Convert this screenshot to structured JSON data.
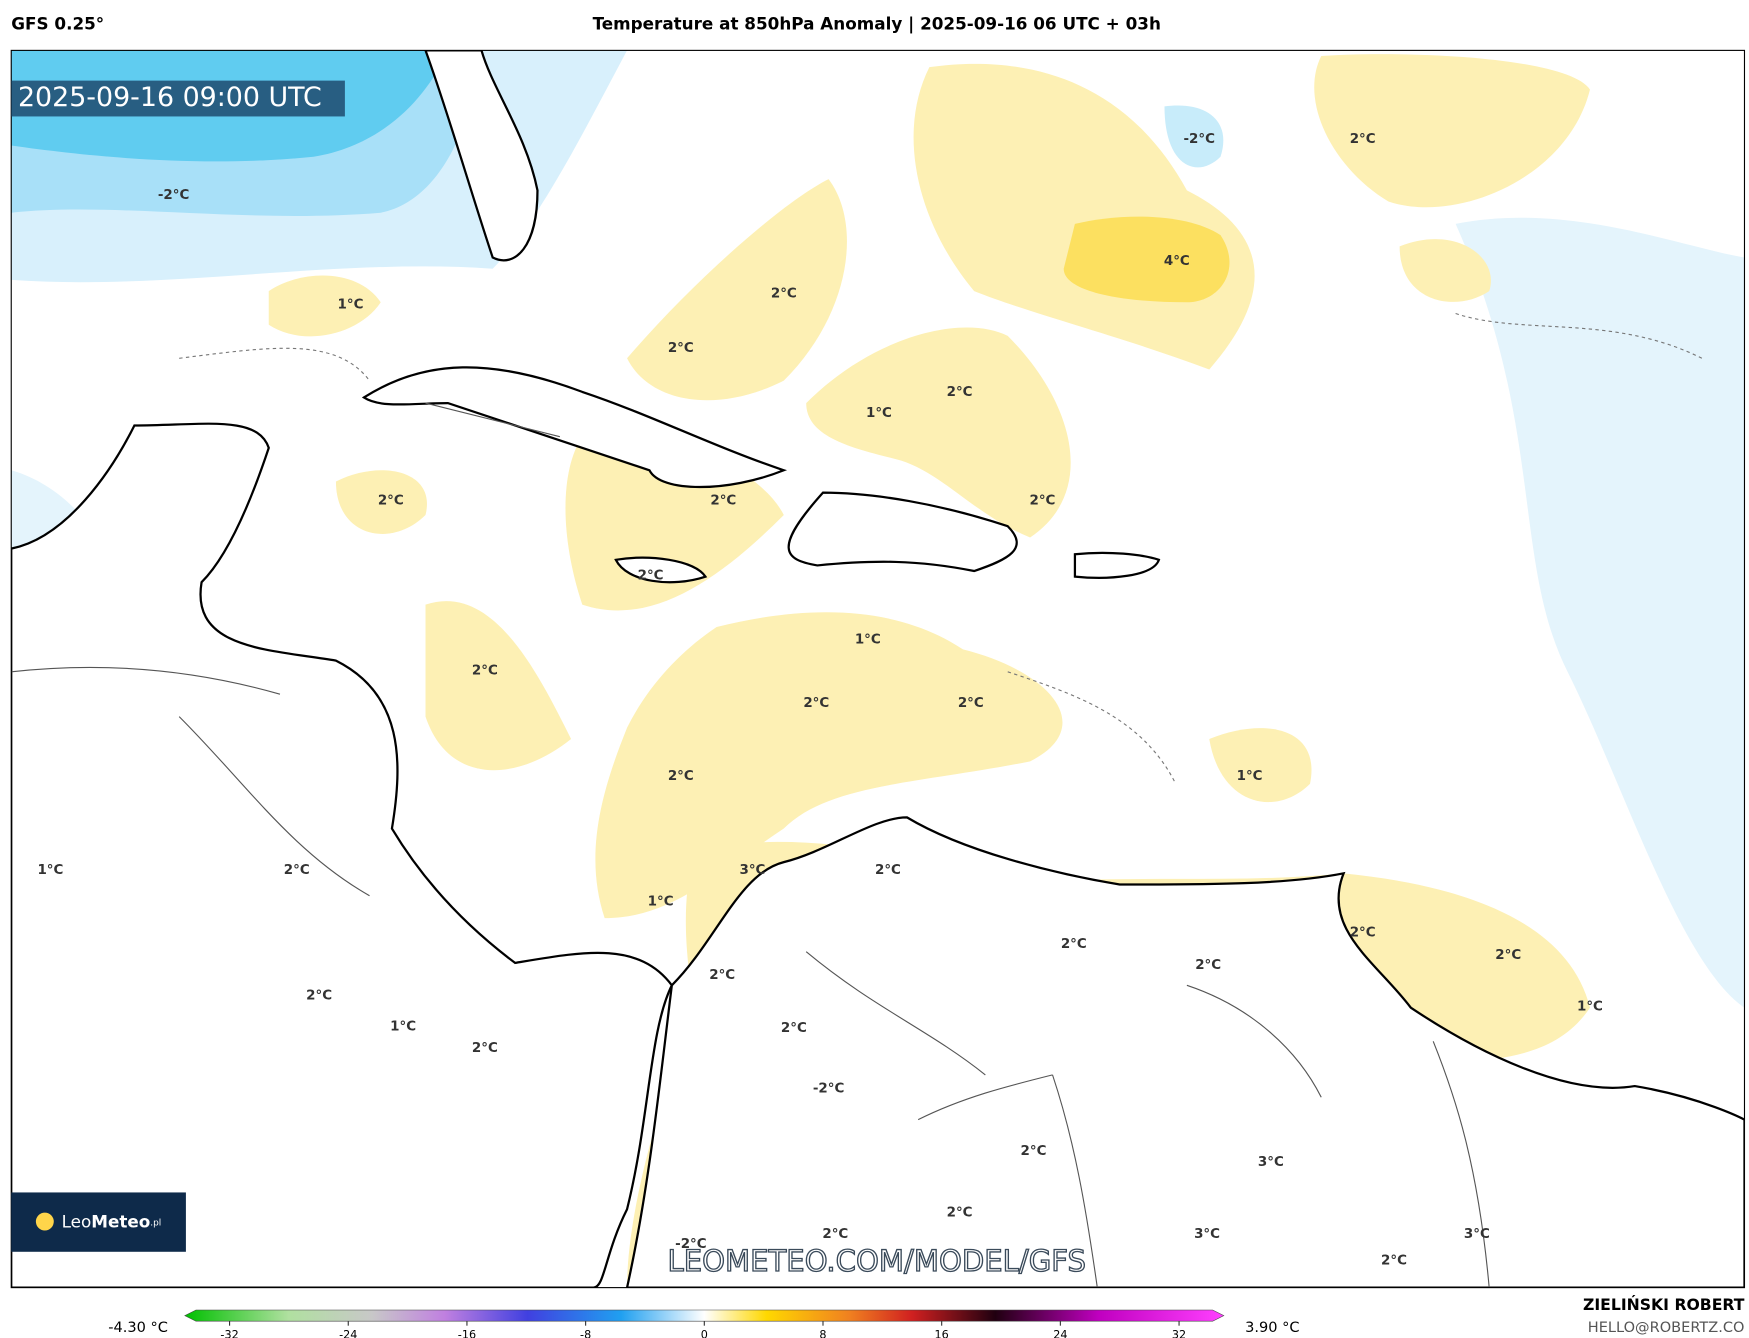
{
  "header": {
    "model": "GFS 0.25°",
    "title": "Temperature at 850hPa Anomaly | 2025-09-16 06 UTC + 03h"
  },
  "map": {
    "timestamp": "2025-09-16 09:00 UTC",
    "contour_labels": [
      "2°C",
      "-2°C",
      "-2°C",
      "4°C",
      "1°C",
      "2°C",
      "2°C",
      "2°C",
      "1°C",
      "2°C",
      "2°C",
      "2°C",
      "2°C",
      "1°C",
      "2°C",
      "2°C",
      "2°C",
      "2°C",
      "1°C",
      "1°C",
      "2°C",
      "3°C",
      "2°C",
      "1°C",
      "2°C",
      "2°C",
      "2°C",
      "2°C",
      "2°C",
      "1°C",
      "2°C",
      "2°C",
      "1°C",
      "2°C",
      "-2°C",
      "2°C",
      "3°C",
      "2°C",
      "2°C",
      "3°C",
      "3°C",
      "-2°C",
      "2°C"
    ],
    "watermark": "LEOMETEO.COM/MODEL/GFS",
    "logo": {
      "name": "Leo",
      "name_bold": "Meteo",
      "suffix": ".pl"
    }
  },
  "colorbar": {
    "min_label": "-4.30 °C",
    "max_label": "3.90 °C",
    "ticks": [
      -32,
      -24,
      -16,
      -8,
      0,
      8,
      16,
      24,
      32
    ]
  },
  "credits": {
    "author": "ZIELIŃSKI ROBERT",
    "contact": "HELLO@ROBERTZ.CO"
  }
}
